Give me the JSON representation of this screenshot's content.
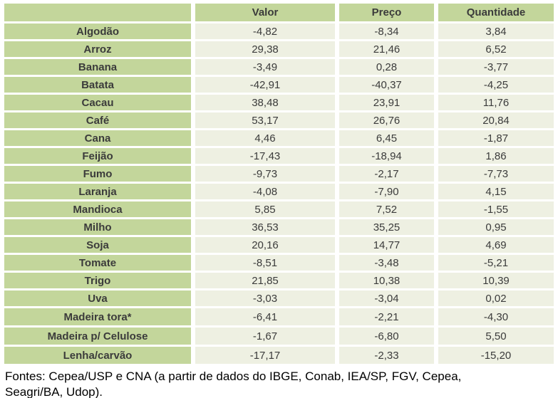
{
  "table": {
    "columns": [
      "",
      "Valor",
      "Preço",
      "Quantidade"
    ],
    "rows": [
      {
        "label": "Algodão",
        "valor": "-4,82",
        "preco": "-8,34",
        "quantidade": "3,84"
      },
      {
        "label": "Arroz",
        "valor": "29,38",
        "preco": "21,46",
        "quantidade": "6,52"
      },
      {
        "label": "Banana",
        "valor": "-3,49",
        "preco": "0,28",
        "quantidade": "-3,77"
      },
      {
        "label": "Batata",
        "valor": "-42,91",
        "preco": "-40,37",
        "quantidade": "-4,25"
      },
      {
        "label": "Cacau",
        "valor": "38,48",
        "preco": "23,91",
        "quantidade": "11,76"
      },
      {
        "label": "Café",
        "valor": "53,17",
        "preco": "26,76",
        "quantidade": "20,84"
      },
      {
        "label": "Cana",
        "valor": "4,46",
        "preco": "6,45",
        "quantidade": "-1,87"
      },
      {
        "label": "Feijão",
        "valor": "-17,43",
        "preco": "-18,94",
        "quantidade": "1,86"
      },
      {
        "label": "Fumo",
        "valor": "-9,73",
        "preco": "-2,17",
        "quantidade": "-7,73"
      },
      {
        "label": "Laranja",
        "valor": "-4,08",
        "preco": "-7,90",
        "quantidade": "4,15"
      },
      {
        "label": "Mandioca",
        "valor": "5,85",
        "preco": "7,52",
        "quantidade": "-1,55"
      },
      {
        "label": "Milho",
        "valor": "36,53",
        "preco": "35,25",
        "quantidade": "0,95"
      },
      {
        "label": "Soja",
        "valor": "20,16",
        "preco": "14,77",
        "quantidade": "4,69"
      },
      {
        "label": "Tomate",
        "valor": "-8,51",
        "preco": "-3,48",
        "quantidade": "-5,21"
      },
      {
        "label": "Trigo",
        "valor": "21,85",
        "preco": "10,38",
        "quantidade": "10,39"
      },
      {
        "label": "Uva",
        "valor": "-3,03",
        "preco": "-3,04",
        "quantidade": "0,02"
      },
      {
        "label": "Madeira tora*",
        "valor": "-6,41",
        "preco": "-2,21",
        "quantidade": "-4,30"
      },
      {
        "label": "Madeira p/ Celulose",
        "valor": "-1,67",
        "preco": "-6,80",
        "quantidade": "5,50"
      },
      {
        "label": "Lenha/carvão",
        "valor": "-17,17",
        "preco": "-2,33",
        "quantidade": "-15,20"
      }
    ]
  },
  "footer": {
    "line1": "Fontes: Cepea/USP e CNA (a partir de dados do IBGE, Conab, IEA/SP, FGV, Cepea,",
    "line2": "Seagri/BA, Udop)."
  },
  "colors": {
    "header_green": "#c3d69b",
    "cell_light": "#eef0e2",
    "table_text": "#3b3b3b",
    "footer_text": "#000000"
  },
  "chart_data": {
    "type": "table",
    "title": "",
    "columns": [
      "",
      "Valor",
      "Preço",
      "Quantidade"
    ],
    "categories": [
      "Algodão",
      "Arroz",
      "Banana",
      "Batata",
      "Cacau",
      "Café",
      "Cana",
      "Feijão",
      "Fumo",
      "Laranja",
      "Mandioca",
      "Milho",
      "Soja",
      "Tomate",
      "Trigo",
      "Uva",
      "Madeira tora*",
      "Madeira p/ Celulose",
      "Lenha/carvão"
    ],
    "series": [
      {
        "name": "Valor",
        "values": [
          -4.82,
          29.38,
          -3.49,
          -42.91,
          38.48,
          53.17,
          4.46,
          -17.43,
          -9.73,
          -4.08,
          5.85,
          36.53,
          20.16,
          -8.51,
          21.85,
          -3.03,
          -6.41,
          -1.67,
          -17.17
        ]
      },
      {
        "name": "Preço",
        "values": [
          -8.34,
          21.46,
          0.28,
          -40.37,
          23.91,
          26.76,
          6.45,
          -18.94,
          -2.17,
          -7.9,
          7.52,
          35.25,
          14.77,
          -3.48,
          10.38,
          -3.04,
          -2.21,
          -6.8,
          -2.33
        ]
      },
      {
        "name": "Quantidade",
        "values": [
          3.84,
          6.52,
          -3.77,
          -4.25,
          11.76,
          20.84,
          -1.87,
          1.86,
          -7.73,
          4.15,
          -1.55,
          0.95,
          4.69,
          -5.21,
          10.39,
          0.02,
          -4.3,
          5.5,
          -15.2
        ]
      }
    ],
    "annotations": [
      "Fontes: Cepea/USP e CNA (a partir de dados do IBGE, Conab, IEA/SP, FGV, Cepea, Seagri/BA, Udop)."
    ]
  }
}
